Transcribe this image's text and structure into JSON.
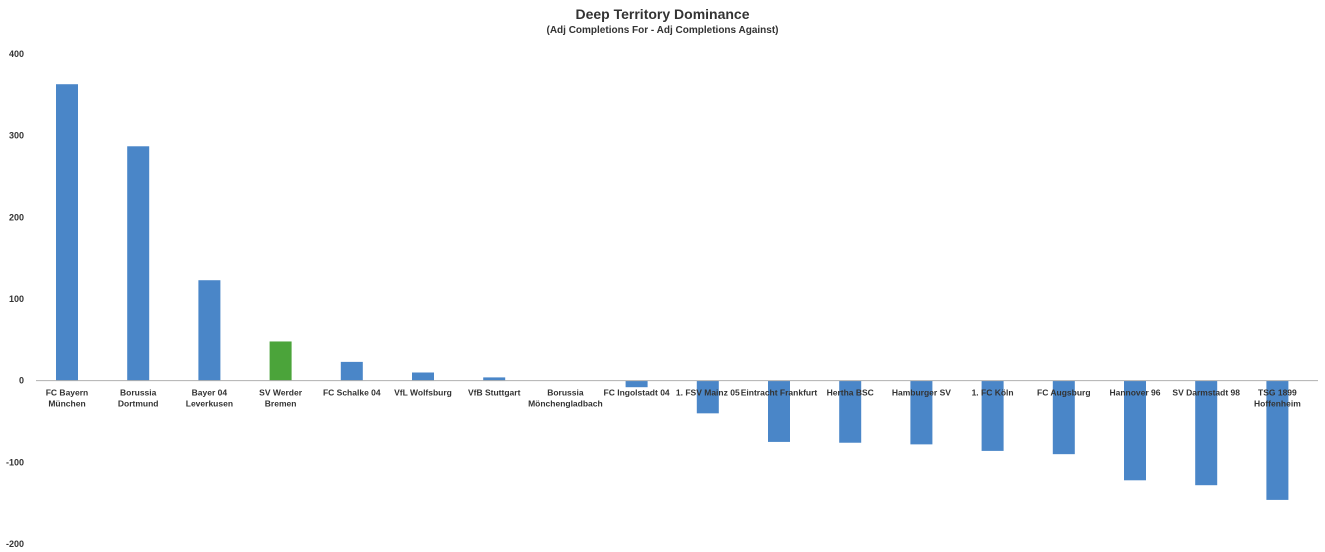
{
  "chart_data": {
    "type": "bar",
    "title": "Deep Territory Dominance",
    "subtitle": "(Adj Completions For - Adj Completions Against)",
    "xlabel": "",
    "ylabel": "",
    "ylim": [
      -200,
      400
    ],
    "yticks": [
      "400",
      "300",
      "200",
      "100",
      "0",
      "-100",
      "-200"
    ],
    "grid": false,
    "categories": [
      [
        "FC Bayern",
        "München"
      ],
      [
        "Borussia",
        "Dortmund"
      ],
      [
        "Bayer 04",
        "Leverkusen"
      ],
      [
        "SV Werder",
        "Bremen"
      ],
      [
        "FC Schalke 04"
      ],
      [
        "VfL Wolfsburg"
      ],
      [
        "VfB Stuttgart"
      ],
      [
        "Borussia",
        "Mönchengladbach"
      ],
      [
        "FC Ingolstadt 04"
      ],
      [
        "1. FSV Mainz 05"
      ],
      [
        "Eintracht Frankfurt"
      ],
      [
        "Hertha BSC"
      ],
      [
        "Hamburger SV"
      ],
      [
        "1. FC Köln"
      ],
      [
        "FC Augsburg"
      ],
      [
        "Hannover 96"
      ],
      [
        "SV Darmstadt 98"
      ],
      [
        "TSG 1899",
        "Hoffenheim"
      ]
    ],
    "values": [
      363,
      287,
      123,
      48,
      23,
      10,
      4,
      0,
      -8,
      -40,
      -75,
      -76,
      -78,
      -86,
      -90,
      -122,
      -128,
      -146
    ],
    "colors": {
      "default": "#4a86c8",
      "highlight": "#4ba43a",
      "axis": "#b0b0b0"
    },
    "highlight_index": 3
  }
}
